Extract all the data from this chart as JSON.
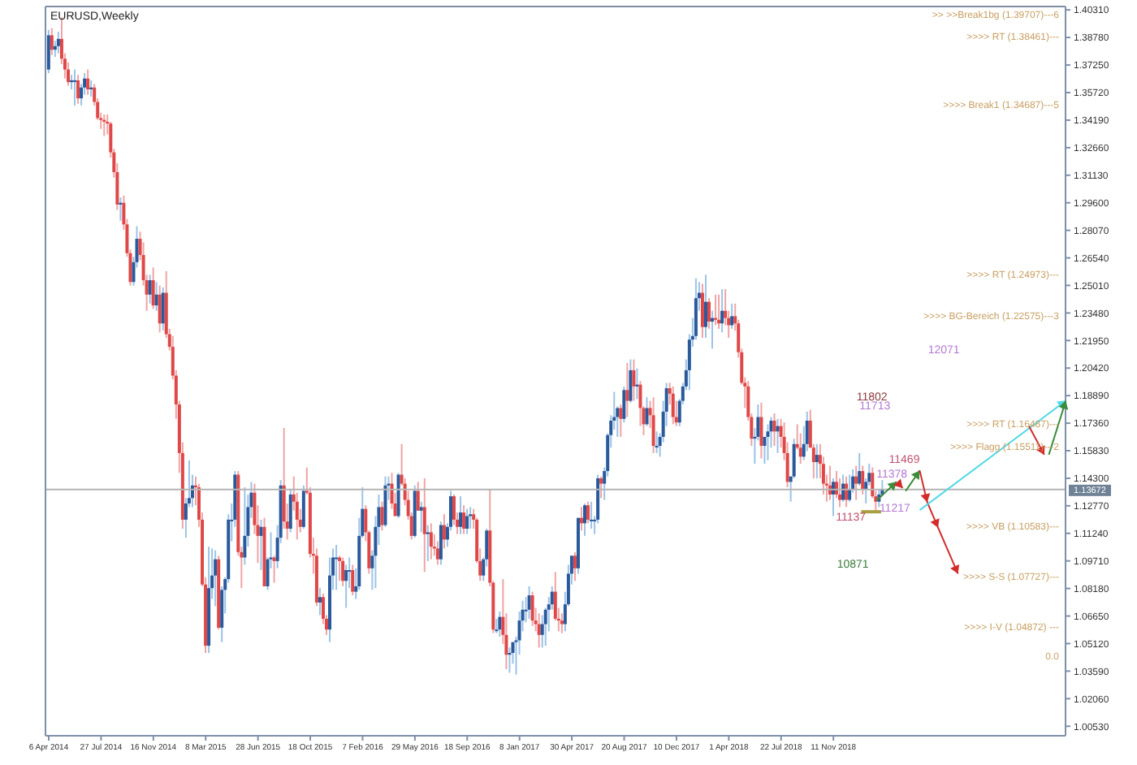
{
  "chart_data": {
    "type": "candlestick",
    "title": "EURUSD,Weekly",
    "x": [
      "2014-04-06",
      "2014-04-13",
      "2014-04-20",
      "2014-04-27",
      "2014-05-04",
      "2014-05-11",
      "2014-05-18",
      "2014-05-25",
      "2014-06-01",
      "2014-06-08",
      "2014-06-15",
      "2014-06-22",
      "2014-06-29",
      "2014-07-06",
      "2014-07-13",
      "2014-07-20",
      "2014-07-27",
      "2014-08-03",
      "2014-08-10",
      "2014-08-17",
      "2014-08-24",
      "2014-08-31",
      "2014-09-07",
      "2014-09-14",
      "2014-09-21",
      "2014-09-28",
      "2014-10-05",
      "2014-10-12",
      "2014-10-19",
      "2014-10-26",
      "2014-11-02",
      "2014-11-09",
      "2014-11-16",
      "2014-11-23",
      "2014-11-30",
      "2014-12-07",
      "2014-12-14",
      "2014-12-21",
      "2014-12-28",
      "2015-01-04",
      "2015-01-11",
      "2015-01-18",
      "2015-01-25",
      "2015-02-01",
      "2015-02-08",
      "2015-02-15",
      "2015-02-22",
      "2015-03-01",
      "2015-03-08",
      "2015-03-15",
      "2015-03-22",
      "2015-03-29",
      "2015-04-05",
      "2015-04-12",
      "2015-04-19",
      "2015-04-26",
      "2015-05-03",
      "2015-05-10",
      "2015-05-17",
      "2015-05-24",
      "2015-05-31",
      "2015-06-07",
      "2015-06-14",
      "2015-06-21",
      "2015-06-28",
      "2015-07-05",
      "2015-07-12",
      "2015-07-19",
      "2015-07-26",
      "2015-08-02",
      "2015-08-09",
      "2015-08-16",
      "2015-08-23",
      "2015-08-30",
      "2015-09-06",
      "2015-09-13",
      "2015-09-20",
      "2015-09-27",
      "2015-10-04",
      "2015-10-11",
      "2015-10-18",
      "2015-10-25",
      "2015-11-01",
      "2015-11-08",
      "2015-11-15",
      "2015-11-22",
      "2015-11-29",
      "2015-12-06",
      "2015-12-13",
      "2015-12-20",
      "2015-12-27",
      "2016-01-03",
      "2016-01-10",
      "2016-01-17",
      "2016-01-24",
      "2016-01-31",
      "2016-02-07",
      "2016-02-14",
      "2016-02-21",
      "2016-02-28",
      "2016-03-06",
      "2016-03-13",
      "2016-03-20",
      "2016-03-27",
      "2016-04-03",
      "2016-04-10",
      "2016-04-17",
      "2016-04-24",
      "2016-05-01",
      "2016-05-08",
      "2016-05-15",
      "2016-05-22",
      "2016-05-29",
      "2016-06-05",
      "2016-06-12",
      "2016-06-19",
      "2016-06-26",
      "2016-07-03",
      "2016-07-10",
      "2016-07-17",
      "2016-07-24",
      "2016-07-31",
      "2016-08-07",
      "2016-08-14",
      "2016-08-21",
      "2016-08-28",
      "2016-09-04",
      "2016-09-11",
      "2016-09-18",
      "2016-09-25",
      "2016-10-02",
      "2016-10-09",
      "2016-10-16",
      "2016-10-23",
      "2016-10-30",
      "2016-11-06",
      "2016-11-13",
      "2016-11-20",
      "2016-11-27",
      "2016-12-04",
      "2016-12-11",
      "2016-12-18",
      "2016-12-25",
      "2017-01-01",
      "2017-01-08",
      "2017-01-15",
      "2017-01-22",
      "2017-01-29",
      "2017-02-05",
      "2017-02-12",
      "2017-02-19",
      "2017-02-26",
      "2017-03-05",
      "2017-03-12",
      "2017-03-19",
      "2017-03-26",
      "2017-04-02",
      "2017-04-09",
      "2017-04-16",
      "2017-04-23",
      "2017-04-30",
      "2017-05-07",
      "2017-05-14",
      "2017-05-21",
      "2017-05-28",
      "2017-06-04",
      "2017-06-11",
      "2017-06-18",
      "2017-06-25",
      "2017-07-02",
      "2017-07-09",
      "2017-07-16",
      "2017-07-23",
      "2017-07-30",
      "2017-08-06",
      "2017-08-13",
      "2017-08-20",
      "2017-08-27",
      "2017-09-03",
      "2017-09-10",
      "2017-09-17",
      "2017-09-24",
      "2017-10-01",
      "2017-10-08",
      "2017-10-15",
      "2017-10-22",
      "2017-10-29",
      "2017-11-05",
      "2017-11-12",
      "2017-11-19",
      "2017-11-26",
      "2017-12-03",
      "2017-12-10",
      "2017-12-17",
      "2017-12-24",
      "2017-12-31",
      "2018-01-07",
      "2018-01-14",
      "2018-01-21",
      "2018-01-28",
      "2018-02-04",
      "2018-02-11",
      "2018-02-18",
      "2018-02-25",
      "2018-03-04",
      "2018-03-11",
      "2018-03-18",
      "2018-03-25",
      "2018-04-01",
      "2018-04-08",
      "2018-04-15",
      "2018-04-22",
      "2018-04-29",
      "2018-05-06",
      "2018-05-13",
      "2018-05-20",
      "2018-05-27",
      "2018-06-03",
      "2018-06-10",
      "2018-06-17",
      "2018-06-24",
      "2018-07-01",
      "2018-07-08",
      "2018-07-15",
      "2018-07-22",
      "2018-07-29",
      "2018-08-05",
      "2018-08-12",
      "2018-08-19",
      "2018-08-26",
      "2018-09-02",
      "2018-09-09",
      "2018-09-16",
      "2018-09-23",
      "2018-09-30",
      "2018-10-07",
      "2018-10-14",
      "2018-10-21",
      "2018-10-28",
      "2018-11-04",
      "2018-11-11",
      "2018-11-18",
      "2018-11-25",
      "2018-12-02",
      "2018-12-09",
      "2018-12-16",
      "2018-12-23",
      "2018-12-30",
      "2019-01-06",
      "2019-01-13",
      "2019-01-20",
      "2019-01-27",
      "2019-02-03",
      "2019-02-10",
      "2019-02-17",
      "2019-02-24"
    ],
    "ohlc": [
      [
        1.37,
        1.392,
        1.368,
        1.389
      ],
      [
        1.389,
        1.393,
        1.378,
        1.381
      ],
      [
        1.381,
        1.386,
        1.377,
        1.383
      ],
      [
        1.383,
        1.391,
        1.379,
        1.387
      ],
      [
        1.387,
        1.399,
        1.373,
        1.376
      ],
      [
        1.376,
        1.379,
        1.365,
        1.37
      ],
      [
        1.37,
        1.374,
        1.361,
        1.363
      ],
      [
        1.363,
        1.367,
        1.359,
        1.364
      ],
      [
        1.364,
        1.37,
        1.35,
        1.364
      ],
      [
        1.364,
        1.367,
        1.351,
        1.354
      ],
      [
        1.354,
        1.362,
        1.35,
        1.36
      ],
      [
        1.36,
        1.368,
        1.356,
        1.365
      ],
      [
        1.365,
        1.37,
        1.356,
        1.359
      ],
      [
        1.359,
        1.364,
        1.355,
        1.36
      ],
      [
        1.36,
        1.362,
        1.35,
        1.352
      ],
      [
        1.352,
        1.354,
        1.342,
        1.343
      ],
      [
        1.343,
        1.346,
        1.337,
        1.342
      ],
      [
        1.342,
        1.345,
        1.333,
        1.341
      ],
      [
        1.341,
        1.345,
        1.334,
        1.34
      ],
      [
        1.34,
        1.341,
        1.321,
        1.324
      ],
      [
        1.324,
        1.326,
        1.31,
        1.313
      ],
      [
        1.313,
        1.318,
        1.292,
        1.295
      ],
      [
        1.295,
        1.299,
        1.286,
        1.296
      ],
      [
        1.296,
        1.3,
        1.281,
        1.284
      ],
      [
        1.284,
        1.287,
        1.266,
        1.268
      ],
      [
        1.268,
        1.27,
        1.25,
        1.252
      ],
      [
        1.252,
        1.266,
        1.25,
        1.263
      ],
      [
        1.263,
        1.283,
        1.26,
        1.276
      ],
      [
        1.276,
        1.28,
        1.264,
        1.267
      ],
      [
        1.267,
        1.274,
        1.25,
        1.253
      ],
      [
        1.253,
        1.256,
        1.236,
        1.245
      ],
      [
        1.245,
        1.256,
        1.24,
        1.253
      ],
      [
        1.253,
        1.26,
        1.237,
        1.239
      ],
      [
        1.239,
        1.252,
        1.236,
        1.245
      ],
      [
        1.245,
        1.25,
        1.224,
        1.229
      ],
      [
        1.229,
        1.249,
        1.225,
        1.246
      ],
      [
        1.246,
        1.258,
        1.221,
        1.223
      ],
      [
        1.223,
        1.226,
        1.214,
        1.216
      ],
      [
        1.216,
        1.222,
        1.198,
        1.2
      ],
      [
        1.2,
        1.203,
        1.176,
        1.184
      ],
      [
        1.184,
        1.186,
        1.146,
        1.157
      ],
      [
        1.157,
        1.163,
        1.115,
        1.12
      ],
      [
        1.12,
        1.132,
        1.11,
        1.129
      ],
      [
        1.129,
        1.153,
        1.127,
        1.132
      ],
      [
        1.132,
        1.145,
        1.127,
        1.139
      ],
      [
        1.139,
        1.144,
        1.128,
        1.138
      ],
      [
        1.138,
        1.14,
        1.116,
        1.12
      ],
      [
        1.12,
        1.124,
        1.083,
        1.084
      ],
      [
        1.084,
        1.088,
        1.046,
        1.05
      ],
      [
        1.05,
        1.105,
        1.046,
        1.082
      ],
      [
        1.082,
        1.104,
        1.076,
        1.089
      ],
      [
        1.089,
        1.103,
        1.072,
        1.098
      ],
      [
        1.098,
        1.1,
        1.059,
        1.06
      ],
      [
        1.06,
        1.083,
        1.052,
        1.081
      ],
      [
        1.081,
        1.088,
        1.068,
        1.087
      ],
      [
        1.087,
        1.123,
        1.085,
        1.12
      ],
      [
        1.12,
        1.129,
        1.108,
        1.12
      ],
      [
        1.12,
        1.147,
        1.116,
        1.145
      ],
      [
        1.145,
        1.147,
        1.1,
        1.102
      ],
      [
        1.102,
        1.105,
        1.082,
        1.099
      ],
      [
        1.099,
        1.138,
        1.095,
        1.111
      ],
      [
        1.111,
        1.134,
        1.105,
        1.127
      ],
      [
        1.127,
        1.141,
        1.121,
        1.135
      ],
      [
        1.135,
        1.14,
        1.112,
        1.117
      ],
      [
        1.117,
        1.128,
        1.096,
        1.111
      ],
      [
        1.111,
        1.12,
        1.092,
        1.116
      ],
      [
        1.116,
        1.121,
        1.083,
        1.083
      ],
      [
        1.083,
        1.099,
        1.081,
        1.098
      ],
      [
        1.098,
        1.113,
        1.093,
        1.099
      ],
      [
        1.099,
        1.1,
        1.085,
        1.097
      ],
      [
        1.097,
        1.117,
        1.093,
        1.11
      ],
      [
        1.11,
        1.142,
        1.107,
        1.139
      ],
      [
        1.139,
        1.171,
        1.115,
        1.119
      ],
      [
        1.119,
        1.129,
        1.109,
        1.115
      ],
      [
        1.115,
        1.137,
        1.113,
        1.134
      ],
      [
        1.134,
        1.144,
        1.125,
        1.13
      ],
      [
        1.13,
        1.135,
        1.109,
        1.12
      ],
      [
        1.12,
        1.126,
        1.113,
        1.116
      ],
      [
        1.116,
        1.139,
        1.115,
        1.136
      ],
      [
        1.136,
        1.149,
        1.134,
        1.135
      ],
      [
        1.135,
        1.138,
        1.099,
        1.101
      ],
      [
        1.101,
        1.11,
        1.09,
        1.1
      ],
      [
        1.1,
        1.104,
        1.072,
        1.074
      ],
      [
        1.074,
        1.082,
        1.067,
        1.077
      ],
      [
        1.077,
        1.079,
        1.062,
        1.065
      ],
      [
        1.065,
        1.067,
        1.056,
        1.059
      ],
      [
        1.059,
        1.099,
        1.052,
        1.089
      ],
      [
        1.089,
        1.104,
        1.081,
        1.099
      ],
      [
        1.099,
        1.106,
        1.081,
        1.099
      ],
      [
        1.099,
        1.1,
        1.086,
        1.097
      ],
      [
        1.097,
        1.099,
        1.083,
        1.086
      ],
      [
        1.086,
        1.095,
        1.071,
        1.092
      ],
      [
        1.092,
        1.099,
        1.082,
        1.092
      ],
      [
        1.092,
        1.095,
        1.078,
        1.08
      ],
      [
        1.08,
        1.093,
        1.076,
        1.083
      ],
      [
        1.083,
        1.121,
        1.081,
        1.111
      ],
      [
        1.111,
        1.138,
        1.11,
        1.126
      ],
      [
        1.126,
        1.128,
        1.108,
        1.113
      ],
      [
        1.113,
        1.114,
        1.09,
        1.093
      ],
      [
        1.093,
        1.103,
        1.081,
        1.1
      ],
      [
        1.1,
        1.122,
        1.082,
        1.116
      ],
      [
        1.116,
        1.134,
        1.106,
        1.127
      ],
      [
        1.127,
        1.13,
        1.114,
        1.117
      ],
      [
        1.117,
        1.144,
        1.116,
        1.139
      ],
      [
        1.139,
        1.144,
        1.131,
        1.14
      ],
      [
        1.14,
        1.146,
        1.126,
        1.129
      ],
      [
        1.129,
        1.135,
        1.122,
        1.122
      ],
      [
        1.122,
        1.146,
        1.121,
        1.145
      ],
      [
        1.145,
        1.162,
        1.139,
        1.14
      ],
      [
        1.14,
        1.143,
        1.128,
        1.131
      ],
      [
        1.131,
        1.136,
        1.12,
        1.122
      ],
      [
        1.122,
        1.124,
        1.109,
        1.111
      ],
      [
        1.111,
        1.139,
        1.11,
        1.136
      ],
      [
        1.136,
        1.141,
        1.125,
        1.125
      ],
      [
        1.125,
        1.13,
        1.113,
        1.127
      ],
      [
        1.127,
        1.143,
        1.091,
        1.112
      ],
      [
        1.112,
        1.117,
        1.097,
        1.113
      ],
      [
        1.113,
        1.118,
        1.098,
        1.105
      ],
      [
        1.105,
        1.112,
        1.1,
        1.104
      ],
      [
        1.104,
        1.108,
        1.095,
        1.098
      ],
      [
        1.098,
        1.119,
        1.095,
        1.117
      ],
      [
        1.117,
        1.123,
        1.104,
        1.109
      ],
      [
        1.109,
        1.118,
        1.105,
        1.116
      ],
      [
        1.116,
        1.136,
        1.114,
        1.133
      ],
      [
        1.133,
        1.134,
        1.117,
        1.12
      ],
      [
        1.12,
        1.124,
        1.112,
        1.116
      ],
      [
        1.116,
        1.133,
        1.112,
        1.124
      ],
      [
        1.124,
        1.128,
        1.112,
        1.115
      ],
      [
        1.115,
        1.126,
        1.112,
        1.122
      ],
      [
        1.122,
        1.127,
        1.115,
        1.123
      ],
      [
        1.123,
        1.126,
        1.115,
        1.12
      ],
      [
        1.12,
        1.121,
        1.096,
        1.097
      ],
      [
        1.097,
        1.104,
        1.086,
        1.089
      ],
      [
        1.089,
        1.099,
        1.086,
        1.098
      ],
      [
        1.098,
        1.115,
        1.094,
        1.114
      ],
      [
        1.114,
        1.137,
        1.083,
        1.085
      ],
      [
        1.085,
        1.086,
        1.057,
        1.059
      ],
      [
        1.059,
        1.065,
        1.057,
        1.059
      ],
      [
        1.059,
        1.069,
        1.055,
        1.066
      ],
      [
        1.066,
        1.087,
        1.051,
        1.056
      ],
      [
        1.056,
        1.068,
        1.037,
        1.045
      ],
      [
        1.045,
        1.049,
        1.035,
        1.046
      ],
      [
        1.046,
        1.052,
        1.04,
        1.052
      ],
      [
        1.052,
        1.055,
        1.034,
        1.053
      ],
      [
        1.053,
        1.069,
        1.045,
        1.064
      ],
      [
        1.064,
        1.075,
        1.058,
        1.07
      ],
      [
        1.07,
        1.077,
        1.063,
        1.07
      ],
      [
        1.07,
        1.083,
        1.065,
        1.078
      ],
      [
        1.078,
        1.08,
        1.061,
        1.064
      ],
      [
        1.064,
        1.071,
        1.058,
        1.062
      ],
      [
        1.062,
        1.068,
        1.049,
        1.056
      ],
      [
        1.056,
        1.067,
        1.049,
        1.062
      ],
      [
        1.062,
        1.071,
        1.05,
        1.07
      ],
      [
        1.07,
        1.077,
        1.058,
        1.073
      ],
      [
        1.073,
        1.083,
        1.07,
        1.08
      ],
      [
        1.08,
        1.091,
        1.064,
        1.065
      ],
      [
        1.065,
        1.071,
        1.058,
        1.064
      ],
      [
        1.064,
        1.068,
        1.057,
        1.062
      ],
      [
        1.062,
        1.08,
        1.058,
        1.073
      ],
      [
        1.073,
        1.095,
        1.072,
        1.09
      ],
      [
        1.09,
        1.1,
        1.084,
        1.1
      ],
      [
        1.1,
        1.102,
        1.086,
        1.093
      ],
      [
        1.093,
        1.121,
        1.09,
        1.121
      ],
      [
        1.121,
        1.127,
        1.114,
        1.118
      ],
      [
        1.118,
        1.129,
        1.111,
        1.128
      ],
      [
        1.128,
        1.13,
        1.118,
        1.12
      ],
      [
        1.12,
        1.13,
        1.115,
        1.12
      ],
      [
        1.12,
        1.122,
        1.112,
        1.12
      ],
      [
        1.12,
        1.145,
        1.118,
        1.143
      ],
      [
        1.143,
        1.144,
        1.132,
        1.14
      ],
      [
        1.14,
        1.149,
        1.131,
        1.147
      ],
      [
        1.147,
        1.168,
        1.144,
        1.167
      ],
      [
        1.167,
        1.178,
        1.16,
        1.175
      ],
      [
        1.175,
        1.191,
        1.17,
        1.177
      ],
      [
        1.177,
        1.183,
        1.166,
        1.182
      ],
      [
        1.182,
        1.184,
        1.166,
        1.176
      ],
      [
        1.176,
        1.194,
        1.174,
        1.192
      ],
      [
        1.192,
        1.207,
        1.177,
        1.186
      ],
      [
        1.186,
        1.209,
        1.185,
        1.203
      ],
      [
        1.203,
        1.209,
        1.186,
        1.194
      ],
      [
        1.194,
        1.204,
        1.187,
        1.195
      ],
      [
        1.195,
        1.197,
        1.172,
        1.182
      ],
      [
        1.182,
        1.183,
        1.167,
        1.173
      ],
      [
        1.173,
        1.188,
        1.172,
        1.182
      ],
      [
        1.182,
        1.186,
        1.171,
        1.178
      ],
      [
        1.178,
        1.188,
        1.157,
        1.161
      ],
      [
        1.161,
        1.169,
        1.157,
        1.161
      ],
      [
        1.161,
        1.168,
        1.155,
        1.166
      ],
      [
        1.166,
        1.186,
        1.163,
        1.18
      ],
      [
        1.18,
        1.196,
        1.172,
        1.193
      ],
      [
        1.193,
        1.196,
        1.184,
        1.19
      ],
      [
        1.19,
        1.194,
        1.173,
        1.177
      ],
      [
        1.177,
        1.186,
        1.172,
        1.174
      ],
      [
        1.174,
        1.187,
        1.172,
        1.186
      ],
      [
        1.186,
        1.196,
        1.184,
        1.194
      ],
      [
        1.194,
        1.209,
        1.192,
        1.203
      ],
      [
        1.203,
        1.223,
        1.192,
        1.22
      ],
      [
        1.22,
        1.232,
        1.216,
        1.222
      ],
      [
        1.222,
        1.254,
        1.22,
        1.243
      ],
      [
        1.243,
        1.252,
        1.236,
        1.246
      ],
      [
        1.246,
        1.251,
        1.221,
        1.227
      ],
      [
        1.227,
        1.256,
        1.221,
        1.241
      ],
      [
        1.241,
        1.243,
        1.226,
        1.23
      ],
      [
        1.23,
        1.236,
        1.215,
        1.232
      ],
      [
        1.232,
        1.245,
        1.228,
        1.231
      ],
      [
        1.231,
        1.245,
        1.226,
        1.229
      ],
      [
        1.229,
        1.248,
        1.224,
        1.236
      ],
      [
        1.236,
        1.248,
        1.228,
        1.232
      ],
      [
        1.232,
        1.236,
        1.221,
        1.228
      ],
      [
        1.228,
        1.24,
        1.226,
        1.233
      ],
      [
        1.233,
        1.24,
        1.225,
        1.229
      ],
      [
        1.229,
        1.231,
        1.21,
        1.213
      ],
      [
        1.213,
        1.215,
        1.195,
        1.196
      ],
      [
        1.196,
        1.199,
        1.182,
        1.194
      ],
      [
        1.194,
        1.197,
        1.175,
        1.177
      ],
      [
        1.177,
        1.179,
        1.161,
        1.165
      ],
      [
        1.165,
        1.171,
        1.151,
        1.166
      ],
      [
        1.166,
        1.184,
        1.164,
        1.177
      ],
      [
        1.177,
        1.185,
        1.154,
        1.161
      ],
      [
        1.161,
        1.166,
        1.151,
        1.166
      ],
      [
        1.166,
        1.173,
        1.153,
        1.169
      ],
      [
        1.169,
        1.177,
        1.16,
        1.175
      ],
      [
        1.175,
        1.179,
        1.161,
        1.169
      ],
      [
        1.169,
        1.176,
        1.157,
        1.172
      ],
      [
        1.172,
        1.176,
        1.16,
        1.166
      ],
      [
        1.166,
        1.174,
        1.153,
        1.157
      ],
      [
        1.157,
        1.163,
        1.138,
        1.141
      ],
      [
        1.141,
        1.144,
        1.13,
        1.144
      ],
      [
        1.144,
        1.165,
        1.143,
        1.162
      ],
      [
        1.162,
        1.173,
        1.159,
        1.16
      ],
      [
        1.16,
        1.168,
        1.151,
        1.155
      ],
      [
        1.155,
        1.172,
        1.153,
        1.162
      ],
      [
        1.162,
        1.18,
        1.158,
        1.175
      ],
      [
        1.175,
        1.181,
        1.16,
        1.16
      ],
      [
        1.16,
        1.162,
        1.143,
        1.152
      ],
      [
        1.152,
        1.162,
        1.143,
        1.156
      ],
      [
        1.156,
        1.162,
        1.143,
        1.151
      ],
      [
        1.151,
        1.155,
        1.134,
        1.14
      ],
      [
        1.14,
        1.145,
        1.13,
        1.139
      ],
      [
        1.139,
        1.15,
        1.131,
        1.134
      ],
      [
        1.134,
        1.143,
        1.122,
        1.141
      ],
      [
        1.141,
        1.147,
        1.132,
        1.134
      ],
      [
        1.134,
        1.143,
        1.127,
        1.131
      ],
      [
        1.131,
        1.145,
        1.13,
        1.14
      ],
      [
        1.14,
        1.144,
        1.127,
        1.131
      ],
      [
        1.131,
        1.145,
        1.13,
        1.137
      ],
      [
        1.137,
        1.148,
        1.135,
        1.144
      ],
      [
        1.144,
        1.15,
        1.131,
        1.14
      ],
      [
        1.14,
        1.157,
        1.139,
        1.147
      ],
      [
        1.147,
        1.15,
        1.134,
        1.137
      ],
      [
        1.137,
        1.143,
        1.129,
        1.141
      ],
      [
        1.141,
        1.151,
        1.139,
        1.146
      ],
      [
        1.146,
        1.149,
        1.132,
        1.133
      ],
      [
        1.133,
        1.136,
        1.125,
        1.13
      ],
      [
        1.13,
        1.137,
        1.127,
        1.134
      ],
      [
        1.134,
        1.142,
        1.133,
        1.137
      ]
    ],
    "xlim": [
      "2014-03-30",
      "2020-03-22"
    ],
    "xticks": [
      {
        "value": "2014-04-06",
        "label": "6 Apr 2014"
      },
      {
        "value": "2014-07-27",
        "label": "27 Jul 2014"
      },
      {
        "value": "2014-11-16",
        "label": "16 Nov 2014"
      },
      {
        "value": "2015-03-08",
        "label": "8 Mar 2015"
      },
      {
        "value": "2015-06-28",
        "label": "28 Jun 2015"
      },
      {
        "value": "2015-10-18",
        "label": "18 Oct 2015"
      },
      {
        "value": "2016-02-07",
        "label": "7 Feb 2016"
      },
      {
        "value": "2016-05-29",
        "label": "29 May 2016"
      },
      {
        "value": "2016-09-18",
        "label": "18 Sep 2016"
      },
      {
        "value": "2017-01-08",
        "label": "8 Jan 2017"
      },
      {
        "value": "2017-04-30",
        "label": "30 Apr 2017"
      },
      {
        "value": "2017-08-20",
        "label": "20 Aug 2017"
      },
      {
        "value": "2017-12-10",
        "label": "10 Dec 2017"
      },
      {
        "value": "2018-04-01",
        "label": "1 Apr 2018"
      },
      {
        "value": "2018-07-22",
        "label": "22 Jul 2018"
      },
      {
        "value": "2018-11-11",
        "label": "11 Nov 2018"
      }
    ],
    "ylim": [
      1.0,
      1.405
    ],
    "yticks": [
      {
        "value": 1.4031,
        "label": "1.40310"
      },
      {
        "value": 1.3878,
        "label": "1.38780"
      },
      {
        "value": 1.3725,
        "label": "1.37250"
      },
      {
        "value": 1.3572,
        "label": "1.35720"
      },
      {
        "value": 1.3419,
        "label": "1.34190"
      },
      {
        "value": 1.3266,
        "label": "1.32660"
      },
      {
        "value": 1.3113,
        "label": "1.31130"
      },
      {
        "value": 1.296,
        "label": "1.29600"
      },
      {
        "value": 1.2807,
        "label": "1.28070"
      },
      {
        "value": 1.2654,
        "label": "1.26540"
      },
      {
        "value": 1.2501,
        "label": "1.25010"
      },
      {
        "value": 1.2348,
        "label": "1.23480"
      },
      {
        "value": 1.2195,
        "label": "1.21950"
      },
      {
        "value": 1.2042,
        "label": "1.20420"
      },
      {
        "value": 1.1889,
        "label": "1.18890"
      },
      {
        "value": 1.1736,
        "label": "1.17360"
      },
      {
        "value": 1.1583,
        "label": "1.15830"
      },
      {
        "value": 1.143,
        "label": "1.14300"
      },
      {
        "value": 1.1277,
        "label": "1.12770"
      },
      {
        "value": 1.1124,
        "label": "1.11240"
      },
      {
        "value": 1.0971,
        "label": "1.09710"
      },
      {
        "value": 1.0818,
        "label": "1.08180"
      },
      {
        "value": 1.0665,
        "label": "1.06650"
      },
      {
        "value": 1.0512,
        "label": "1.05120"
      },
      {
        "value": 1.0359,
        "label": "1.03590"
      },
      {
        "value": 1.0206,
        "label": "1.02060"
      },
      {
        "value": 1.0053,
        "label": "1.00530"
      }
    ],
    "ref_lines": [
      {
        "axis": "y",
        "value": 1.13672,
        "label": "1.13672",
        "color": "#b4b4b4"
      }
    ],
    "annotations": [
      ">> >>Break1bg (1.39707)---6",
      ">>>> RT (1.38461)---",
      ">>>> Break1 (1.34687)---5",
      ">>>> RT (1.24973)---",
      ">>>> BG-Bereich (1.22575)---3",
      ">>>> RT (1.16487)---",
      ">>>> Flagg (1.15511)---2",
      ">>>> VB (1.10583)---",
      ">>>> S-S (1.07727)---",
      ">>>> I-V (1.04872) ---",
      "0.0",
      "11802",
      "11713",
      "11469",
      "11378",
      "11217",
      "11137",
      "10871",
      "12071"
    ]
  }
}
